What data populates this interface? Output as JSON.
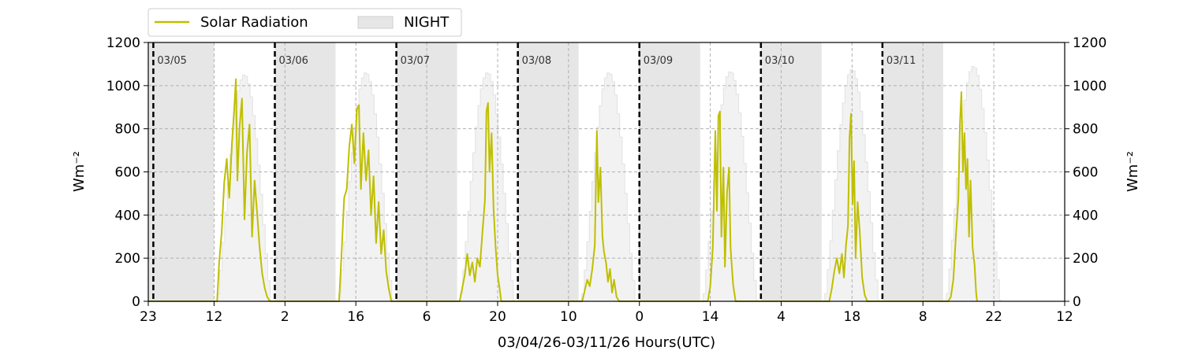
{
  "chart_data": {
    "type": "line",
    "xlabel": "03/04/26-03/11/26  Hours(UTC)",
    "ylabel_left": "Wm⁻²",
    "ylabel_right": "Wm⁻²",
    "ylim": [
      0,
      1200
    ],
    "yticks": [
      0,
      200,
      400,
      600,
      800,
      1000,
      1200
    ],
    "x_range_hours": [
      -1,
      180
    ],
    "xtick_hours": [
      -1,
      12,
      26,
      40,
      54,
      68,
      82,
      96,
      110,
      124,
      138,
      152,
      166,
      180
    ],
    "xtick_labels": [
      "23",
      "12",
      "2",
      "16",
      "6",
      "20",
      "10",
      "0",
      "14",
      "4",
      "18",
      "8",
      "22",
      "12"
    ],
    "grid": true,
    "legend_position": "top-left, above plot",
    "legend": [
      {
        "label": "Solar Radiation",
        "kind": "line",
        "color": "#bfbf00"
      },
      {
        "label": "NIGHT",
        "kind": "patch",
        "color": "#e6e6e6"
      }
    ],
    "day_markers": [
      {
        "hour": 0,
        "label": "03/05"
      },
      {
        "hour": 24,
        "label": "03/06"
      },
      {
        "hour": 48,
        "label": "03/07"
      },
      {
        "hour": 72,
        "label": "03/08"
      },
      {
        "hour": 96,
        "label": "03/09"
      },
      {
        "hour": 120,
        "label": "03/10"
      },
      {
        "hour": 144,
        "label": "03/11"
      }
    ],
    "night_periods": [
      [
        -1,
        12
      ],
      [
        24,
        36
      ],
      [
        48,
        60
      ],
      [
        72,
        84
      ],
      [
        96,
        108
      ],
      [
        120,
        132
      ],
      [
        144,
        156
      ]
    ],
    "clear_sky_peak": [
      1050,
      1060,
      1060,
      1060,
      1065,
      1075,
      1090
    ],
    "solar_day_window": [
      12.6,
      23.4
    ],
    "series": [
      {
        "name": "Solar Radiation",
        "color": "#bfbf00",
        "points": [
          [
            -1,
            0
          ],
          [
            12.6,
            0
          ],
          [
            13.0,
            180
          ],
          [
            13.5,
            320
          ],
          [
            14.0,
            550
          ],
          [
            14.5,
            660
          ],
          [
            15.0,
            480
          ],
          [
            15.5,
            720
          ],
          [
            16.0,
            900
          ],
          [
            16.3,
            1030
          ],
          [
            16.6,
            560
          ],
          [
            17.0,
            800
          ],
          [
            17.5,
            940
          ],
          [
            18.0,
            380
          ],
          [
            18.5,
            690
          ],
          [
            19.0,
            820
          ],
          [
            19.5,
            300
          ],
          [
            20.0,
            560
          ],
          [
            20.5,
            410
          ],
          [
            21.0,
            250
          ],
          [
            21.5,
            130
          ],
          [
            22.0,
            60
          ],
          [
            22.5,
            20
          ],
          [
            23.0,
            0
          ],
          [
            36.7,
            0
          ],
          [
            37.2,
            230
          ],
          [
            37.7,
            480
          ],
          [
            38.2,
            520
          ],
          [
            38.7,
            720
          ],
          [
            39.2,
            820
          ],
          [
            39.7,
            640
          ],
          [
            40.2,
            890
          ],
          [
            40.6,
            910
          ],
          [
            41.0,
            520
          ],
          [
            41.5,
            780
          ],
          [
            42.0,
            560
          ],
          [
            42.5,
            700
          ],
          [
            43.0,
            400
          ],
          [
            43.5,
            580
          ],
          [
            44.0,
            270
          ],
          [
            44.5,
            460
          ],
          [
            45.0,
            220
          ],
          [
            45.5,
            330
          ],
          [
            46.0,
            140
          ],
          [
            46.5,
            60
          ],
          [
            47.0,
            0
          ],
          [
            60.5,
            0
          ],
          [
            61.5,
            120
          ],
          [
            62.0,
            220
          ],
          [
            62.5,
            120
          ],
          [
            63.0,
            180
          ],
          [
            63.5,
            90
          ],
          [
            64.0,
            200
          ],
          [
            64.5,
            160
          ],
          [
            65.0,
            320
          ],
          [
            65.5,
            470
          ],
          [
            65.8,
            880
          ],
          [
            66.1,
            920
          ],
          [
            66.4,
            600
          ],
          [
            66.8,
            780
          ],
          [
            67.2,
            430
          ],
          [
            67.6,
            250
          ],
          [
            68.0,
            120
          ],
          [
            68.4,
            60
          ],
          [
            68.7,
            0
          ],
          [
            84.7,
            0
          ],
          [
            85.2,
            50
          ],
          [
            85.7,
            100
          ],
          [
            86.2,
            70
          ],
          [
            86.7,
            150
          ],
          [
            87.2,
            260
          ],
          [
            87.6,
            790
          ],
          [
            87.9,
            460
          ],
          [
            88.3,
            620
          ],
          [
            88.7,
            300
          ],
          [
            89.0,
            230
          ],
          [
            89.4,
            180
          ],
          [
            89.8,
            90
          ],
          [
            90.2,
            150
          ],
          [
            90.6,
            40
          ],
          [
            91.0,
            100
          ],
          [
            91.5,
            20
          ],
          [
            92.0,
            0
          ],
          [
            109.5,
            0
          ],
          [
            110.0,
            70
          ],
          [
            110.5,
            250
          ],
          [
            111.0,
            790
          ],
          [
            111.3,
            420
          ],
          [
            111.6,
            860
          ],
          [
            111.9,
            880
          ],
          [
            112.2,
            300
          ],
          [
            112.6,
            620
          ],
          [
            112.9,
            160
          ],
          [
            113.3,
            500
          ],
          [
            113.7,
            620
          ],
          [
            114.0,
            250
          ],
          [
            114.5,
            80
          ],
          [
            115.0,
            0
          ],
          [
            133.5,
            0
          ],
          [
            134.0,
            60
          ],
          [
            134.5,
            140
          ],
          [
            135.0,
            200
          ],
          [
            135.5,
            130
          ],
          [
            136.0,
            220
          ],
          [
            136.4,
            110
          ],
          [
            136.8,
            260
          ],
          [
            137.2,
            350
          ],
          [
            137.5,
            760
          ],
          [
            137.8,
            870
          ],
          [
            138.1,
            450
          ],
          [
            138.4,
            650
          ],
          [
            138.7,
            200
          ],
          [
            139.1,
            460
          ],
          [
            139.5,
            330
          ],
          [
            140.0,
            110
          ],
          [
            140.5,
            30
          ],
          [
            141.0,
            0
          ],
          [
            157.0,
            0
          ],
          [
            157.5,
            20
          ],
          [
            158.0,
            100
          ],
          [
            158.5,
            300
          ],
          [
            159.0,
            480
          ],
          [
            159.3,
            820
          ],
          [
            159.6,
            970
          ],
          [
            159.9,
            600
          ],
          [
            160.2,
            780
          ],
          [
            160.5,
            520
          ],
          [
            160.8,
            660
          ],
          [
            161.1,
            300
          ],
          [
            161.4,
            560
          ],
          [
            161.8,
            250
          ],
          [
            162.2,
            170
          ],
          [
            162.5,
            40
          ],
          [
            162.7,
            0
          ]
        ]
      }
    ]
  }
}
